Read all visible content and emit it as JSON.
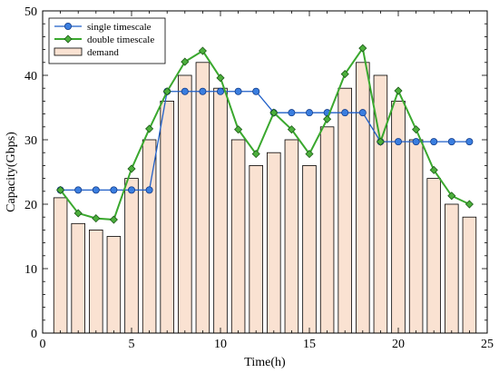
{
  "chart_data": {
    "type": "bar",
    "xlabel": "Time(h)",
    "ylabel": "Capacity(Gbps)",
    "xlim": [
      0,
      25
    ],
    "ylim": [
      0,
      50
    ],
    "xticks": [
      0,
      5,
      10,
      15,
      20,
      25
    ],
    "yticks": [
      0,
      10,
      20,
      30,
      40,
      50
    ],
    "grid": false,
    "legend_position": "top-left",
    "x": [
      1,
      2,
      3,
      4,
      5,
      6,
      7,
      8,
      9,
      10,
      11,
      12,
      13,
      14,
      15,
      16,
      17,
      18,
      19,
      20,
      21,
      22,
      23,
      24
    ],
    "series": [
      {
        "name": "single timescale",
        "type": "line",
        "marker": "circle",
        "color": "#1f5fc8",
        "marker_color": "#3a7ee0",
        "values": [
          22.2,
          22.2,
          22.2,
          22.2,
          22.2,
          22.2,
          37.5,
          37.5,
          37.5,
          37.5,
          37.5,
          37.5,
          34.2,
          34.2,
          34.2,
          34.2,
          34.2,
          34.2,
          29.7,
          29.7,
          29.7,
          29.7,
          29.7,
          29.7
        ]
      },
      {
        "name": "double timescale",
        "type": "line",
        "marker": "diamond",
        "color": "#3aa82e",
        "marker_color": "#4caf3c",
        "values": [
          22.2,
          18.6,
          17.8,
          17.6,
          25.5,
          31.7,
          37.5,
          42.1,
          43.8,
          39.6,
          31.6,
          27.8,
          34.2,
          31.6,
          27.8,
          33.2,
          40.2,
          44.2,
          29.7,
          37.6,
          31.6,
          25.3,
          21.3,
          20.0
        ]
      },
      {
        "name": "demand",
        "type": "bar",
        "color": "#fae2d2",
        "edge_color": "#000000",
        "values": [
          21,
          17,
          16,
          15,
          24,
          30,
          36,
          40,
          42,
          38,
          30,
          26,
          28,
          30,
          26,
          32,
          38,
          42,
          40,
          36,
          30,
          24,
          20,
          18
        ]
      }
    ]
  }
}
